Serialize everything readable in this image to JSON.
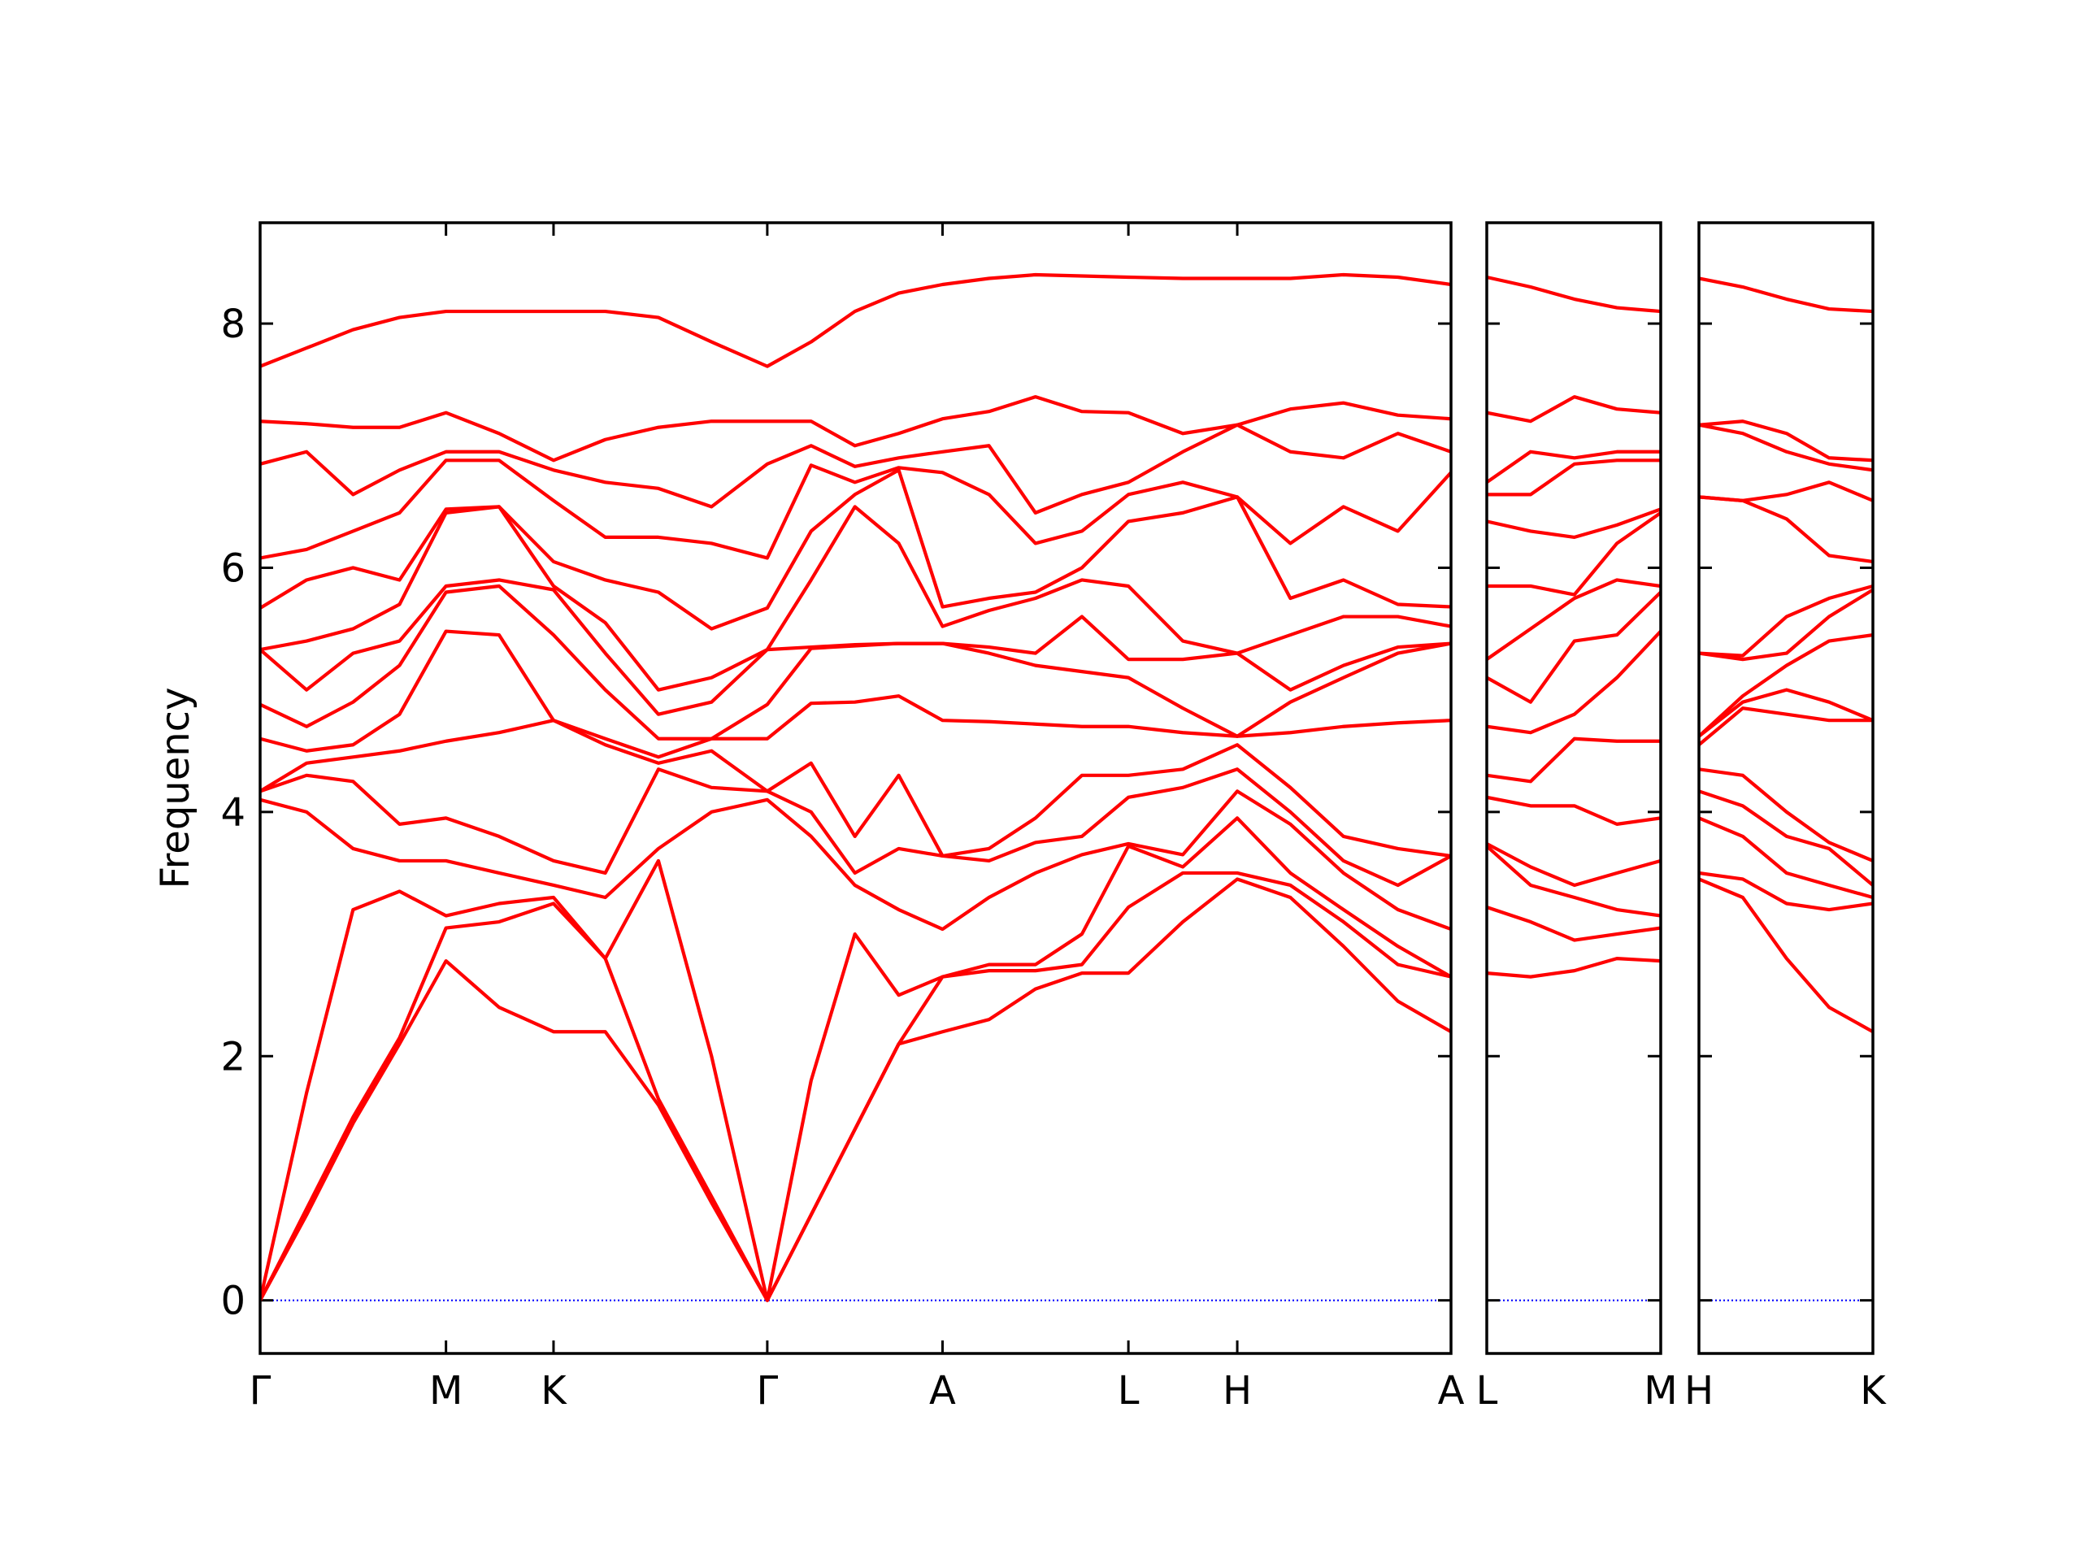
{
  "chart_data": [
    {
      "type": "line",
      "color": "#ff0000",
      "zero_line_color": "#0000ff",
      "y_label": "Frequency",
      "show_ytick_labels": true,
      "xlim": [
        0,
        8.97
      ],
      "ylim": [
        -0.435,
        8.826
      ],
      "yticks": [
        0,
        2,
        4,
        6,
        8
      ],
      "xticks": [
        {
          "value": 0,
          "label": "Γ"
        },
        {
          "value": 1.4,
          "label": "M"
        },
        {
          "value": 2.21,
          "label": "K"
        },
        {
          "value": 3.82,
          "label": "Γ"
        },
        {
          "value": 5.14,
          "label": "A"
        },
        {
          "value": 6.54,
          "label": "L"
        },
        {
          "value": 7.36,
          "label": "H"
        },
        {
          "value": 8.97,
          "label": "A"
        }
      ],
      "x": [
        0,
        0.35,
        0.7,
        1.05,
        1.4,
        1.8,
        2.21,
        2.6,
        3.0,
        3.4,
        3.82,
        4.15,
        4.48,
        4.81,
        5.14,
        5.49,
        5.84,
        6.19,
        6.54,
        6.95,
        7.36,
        7.76,
        8.16,
        8.57,
        8.97
      ],
      "series": [
        {
          "values": [
            0,
            0.7,
            1.45,
            2.1,
            2.78,
            2.4,
            2.2,
            2.2,
            1.6,
            0.8,
            0,
            0.7,
            1.4,
            2.1,
            2.2,
            2.3,
            2.55,
            2.68,
            2.68,
            3.1,
            3.45,
            3.3,
            2.9,
            2.45,
            2.2
          ]
        },
        {
          "values": [
            0,
            0.75,
            1.5,
            2.15,
            3.05,
            3.1,
            3.25,
            2.8,
            1.65,
            0.85,
            0,
            0.7,
            1.4,
            2.1,
            2.65,
            2.7,
            2.7,
            2.75,
            3.22,
            3.5,
            3.5,
            3.4,
            3.1,
            2.75,
            2.65
          ]
        },
        {
          "values": [
            0,
            1.7,
            3.2,
            3.35,
            3.15,
            3.25,
            3.3,
            2.8,
            3.6,
            2.0,
            0,
            1.8,
            3.0,
            2.5,
            2.65,
            2.75,
            2.75,
            3.0,
            3.72,
            3.55,
            3.95,
            3.5,
            3.2,
            2.9,
            2.65
          ]
        },
        {
          "values": [
            4.1,
            4.0,
            3.7,
            3.6,
            3.6,
            3.5,
            3.4,
            3.3,
            3.7,
            4.0,
            4.1,
            3.8,
            3.4,
            3.2,
            3.04,
            3.3,
            3.5,
            3.65,
            3.74,
            3.65,
            4.17,
            3.9,
            3.5,
            3.2,
            3.04
          ]
        },
        {
          "values": [
            4.17,
            4.3,
            4.25,
            3.9,
            3.95,
            3.8,
            3.6,
            3.5,
            4.35,
            4.2,
            4.17,
            4.0,
            3.5,
            3.7,
            3.64,
            3.6,
            3.75,
            3.8,
            4.12,
            4.2,
            4.35,
            4.0,
            3.6,
            3.4,
            3.64
          ]
        },
        {
          "values": [
            4.17,
            4.4,
            4.45,
            4.5,
            4.58,
            4.65,
            4.75,
            4.55,
            4.4,
            4.5,
            4.17,
            4.4,
            3.8,
            4.3,
            3.64,
            3.7,
            3.95,
            4.3,
            4.3,
            4.35,
            4.55,
            4.2,
            3.8,
            3.7,
            3.64
          ]
        },
        {
          "values": [
            4.6,
            4.5,
            4.55,
            4.8,
            5.48,
            5.45,
            4.75,
            4.6,
            4.45,
            4.6,
            4.6,
            4.89,
            4.9,
            4.95,
            4.75,
            4.74,
            4.72,
            4.7,
            4.7,
            4.65,
            4.62,
            4.65,
            4.7,
            4.73,
            4.75
          ]
        },
        {
          "values": [
            4.88,
            4.7,
            4.9,
            5.2,
            5.8,
            5.85,
            5.45,
            5.0,
            4.6,
            4.6,
            4.88,
            5.34,
            5.36,
            5.38,
            5.38,
            5.3,
            5.2,
            5.15,
            5.1,
            4.85,
            4.62,
            4.9,
            5.1,
            5.3,
            5.38
          ]
        },
        {
          "values": [
            5.33,
            5.0,
            5.3,
            5.4,
            5.85,
            5.9,
            5.82,
            5.3,
            4.8,
            4.9,
            5.33,
            5.35,
            5.37,
            5.38,
            5.38,
            5.35,
            5.3,
            5.6,
            5.25,
            5.25,
            5.3,
            5.0,
            5.2,
            5.35,
            5.38
          ]
        },
        {
          "values": [
            5.33,
            5.4,
            5.5,
            5.7,
            6.45,
            6.5,
            5.85,
            5.55,
            5.0,
            5.1,
            5.33,
            5.9,
            6.5,
            6.2,
            5.52,
            5.65,
            5.75,
            5.9,
            5.85,
            5.4,
            5.3,
            5.45,
            5.6,
            5.6,
            5.52
          ]
        },
        {
          "values": [
            5.67,
            5.9,
            6.0,
            5.9,
            6.48,
            6.5,
            6.05,
            5.9,
            5.8,
            5.5,
            5.67,
            6.3,
            6.6,
            6.8,
            5.68,
            5.75,
            5.8,
            6.0,
            6.38,
            6.45,
            6.58,
            5.75,
            5.9,
            5.7,
            5.68
          ]
        },
        {
          "values": [
            6.08,
            6.15,
            6.3,
            6.45,
            6.88,
            6.88,
            6.55,
            6.25,
            6.25,
            6.2,
            6.08,
            6.84,
            6.7,
            6.82,
            6.78,
            6.6,
            6.2,
            6.3,
            6.6,
            6.7,
            6.58,
            6.2,
            6.5,
            6.3,
            6.78
          ]
        },
        {
          "values": [
            6.85,
            6.95,
            6.6,
            6.8,
            6.95,
            6.95,
            6.8,
            6.7,
            6.65,
            6.5,
            6.85,
            7.0,
            6.83,
            6.9,
            6.95,
            7.0,
            6.45,
            6.6,
            6.7,
            6.95,
            7.17,
            6.95,
            6.9,
            7.1,
            6.95
          ]
        },
        {
          "values": [
            7.2,
            7.18,
            7.15,
            7.15,
            7.27,
            7.1,
            6.88,
            7.05,
            7.15,
            7.2,
            7.2,
            7.2,
            7.0,
            7.1,
            7.22,
            7.28,
            7.4,
            7.28,
            7.27,
            7.1,
            7.17,
            7.3,
            7.35,
            7.25,
            7.22
          ]
        },
        {
          "values": [
            7.65,
            7.8,
            7.95,
            8.05,
            8.1,
            8.1,
            8.1,
            8.1,
            8.05,
            7.85,
            7.65,
            7.85,
            8.1,
            8.25,
            8.32,
            8.37,
            8.4,
            8.39,
            8.38,
            8.37,
            8.37,
            8.37,
            8.4,
            8.38,
            8.32
          ]
        }
      ]
    },
    {
      "type": "line",
      "color": "#ff0000",
      "zero_line_color": "#0000ff",
      "show_ytick_labels": false,
      "xlim": [
        0,
        1.31
      ],
      "ylim": [
        -0.435,
        8.826
      ],
      "yticks": [
        0,
        2,
        4,
        6,
        8
      ],
      "xticks": [
        {
          "value": 0,
          "label": "L"
        },
        {
          "value": 1.31,
          "label": "M"
        }
      ],
      "x": [
        0,
        0.33,
        0.66,
        0.98,
        1.31
      ],
      "series": [
        {
          "values": [
            2.68,
            2.65,
            2.7,
            2.8,
            2.78
          ]
        },
        {
          "values": [
            3.22,
            3.1,
            2.95,
            3.0,
            3.05
          ]
        },
        {
          "values": [
            3.72,
            3.4,
            3.3,
            3.2,
            3.15
          ]
        },
        {
          "values": [
            3.74,
            3.55,
            3.4,
            3.5,
            3.6
          ]
        },
        {
          "values": [
            4.12,
            4.05,
            4.05,
            3.9,
            3.95
          ]
        },
        {
          "values": [
            4.3,
            4.25,
            4.6,
            4.58,
            4.58
          ]
        },
        {
          "values": [
            4.7,
            4.65,
            4.8,
            5.1,
            5.48
          ]
        },
        {
          "values": [
            5.1,
            4.9,
            5.4,
            5.45,
            5.8
          ]
        },
        {
          "values": [
            5.25,
            5.5,
            5.75,
            5.9,
            5.85
          ]
        },
        {
          "values": [
            5.85,
            5.85,
            5.78,
            6.2,
            6.45
          ]
        },
        {
          "values": [
            6.38,
            6.3,
            6.25,
            6.35,
            6.48
          ]
        },
        {
          "values": [
            6.6,
            6.6,
            6.85,
            6.88,
            6.88
          ]
        },
        {
          "values": [
            6.7,
            6.95,
            6.9,
            6.95,
            6.95
          ]
        },
        {
          "values": [
            7.27,
            7.2,
            7.4,
            7.3,
            7.27
          ]
        },
        {
          "values": [
            8.38,
            8.3,
            8.2,
            8.13,
            8.1
          ]
        }
      ]
    },
    {
      "type": "line",
      "color": "#ff0000",
      "zero_line_color": "#0000ff",
      "show_ytick_labels": false,
      "xlim": [
        0,
        1.31
      ],
      "ylim": [
        -0.435,
        8.826
      ],
      "yticks": [
        0,
        2,
        4,
        6,
        8
      ],
      "xticks": [
        {
          "value": 0,
          "label": "H"
        },
        {
          "value": 1.31,
          "label": "K"
        }
      ],
      "x": [
        0,
        0.33,
        0.66,
        0.98,
        1.31
      ],
      "series": [
        {
          "values": [
            3.45,
            3.3,
            2.8,
            2.4,
            2.2
          ]
        },
        {
          "values": [
            3.5,
            3.45,
            3.25,
            3.2,
            3.25
          ]
        },
        {
          "values": [
            3.95,
            3.8,
            3.5,
            3.4,
            3.3
          ]
        },
        {
          "values": [
            4.17,
            4.05,
            3.8,
            3.7,
            3.4
          ]
        },
        {
          "values": [
            4.35,
            4.3,
            4.0,
            3.75,
            3.6
          ]
        },
        {
          "values": [
            4.55,
            4.85,
            4.8,
            4.75,
            4.75
          ]
        },
        {
          "values": [
            4.62,
            4.9,
            5.0,
            4.9,
            4.75
          ]
        },
        {
          "values": [
            4.62,
            4.95,
            5.2,
            5.4,
            5.45
          ]
        },
        {
          "values": [
            5.3,
            5.25,
            5.3,
            5.6,
            5.82
          ]
        },
        {
          "values": [
            5.3,
            5.28,
            5.6,
            5.75,
            5.85
          ]
        },
        {
          "values": [
            6.58,
            6.55,
            6.4,
            6.1,
            6.05
          ]
        },
        {
          "values": [
            6.58,
            6.55,
            6.6,
            6.7,
            6.55
          ]
        },
        {
          "values": [
            7.17,
            7.1,
            6.95,
            6.85,
            6.8
          ]
        },
        {
          "values": [
            7.17,
            7.2,
            7.1,
            6.9,
            6.88
          ]
        },
        {
          "values": [
            8.37,
            8.3,
            8.2,
            8.12,
            8.1
          ]
        }
      ]
    }
  ]
}
